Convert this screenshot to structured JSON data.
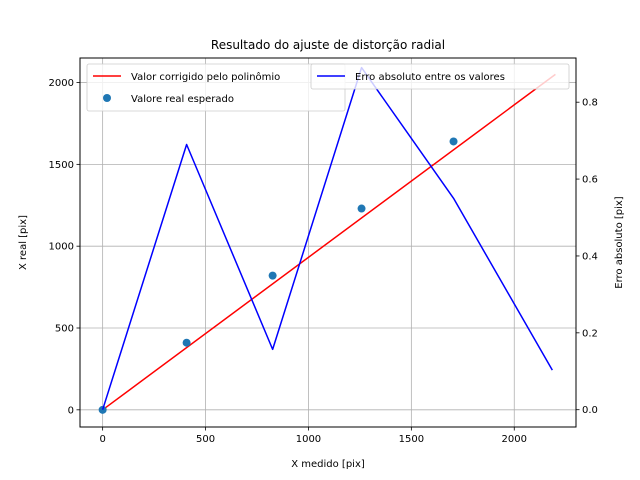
{
  "chart_data": {
    "type": "line",
    "title": "Resultado do ajuste de distorção radial",
    "xlabel": "X medido [pix]",
    "ylabel": "X real [pix]",
    "y2label": "Erro absoluto [pix]",
    "xlim": [
      -110,
      2300
    ],
    "ylim": [
      -105,
      2150
    ],
    "y2lim": [
      -0.045,
      0.915
    ],
    "grid": true,
    "x_ticks": [
      0,
      500,
      1000,
      1500,
      2000
    ],
    "y_ticks": [
      0,
      500,
      1000,
      1500,
      2000
    ],
    "y2_ticks": [
      0.0,
      0.2,
      0.4,
      0.6,
      0.8
    ],
    "x_tick_labels": [
      "0",
      "500",
      "1000",
      "1500",
      "2000"
    ],
    "y_tick_labels": [
      "0",
      "500",
      "1000",
      "1500",
      "2000"
    ],
    "y2_tick_labels": [
      "0.0",
      "0.2",
      "0.4",
      "0.6",
      "0.8"
    ],
    "series": [
      {
        "name": "Valor corrigido pelo polinômio",
        "axis": "left",
        "style": "line",
        "color": "#ff0000",
        "x": [
          0,
          2200
        ],
        "y": [
          0,
          2050
        ]
      },
      {
        "name": "Valore real esperado",
        "axis": "left",
        "style": "markers",
        "color": "#1f77b4",
        "x": [
          0,
          408,
          826,
          1258,
          1705
        ],
        "y": [
          0,
          410,
          820,
          1230,
          1640
        ]
      },
      {
        "name": "Erro absoluto entre os valores",
        "axis": "right",
        "style": "line",
        "color": "#0000ff",
        "x": [
          0,
          408,
          826,
          1258,
          1705,
          2185
        ],
        "y": [
          0.0,
          0.69,
          0.157,
          0.89,
          0.55,
          0.103
        ]
      }
    ],
    "legends": [
      {
        "placement": "upper-left",
        "entries": [
          "Valor corrigido pelo polinômio",
          "Valore real esperado"
        ]
      },
      {
        "placement": "upper-right",
        "entries": [
          "Erro absoluto entre os valores"
        ]
      }
    ]
  }
}
